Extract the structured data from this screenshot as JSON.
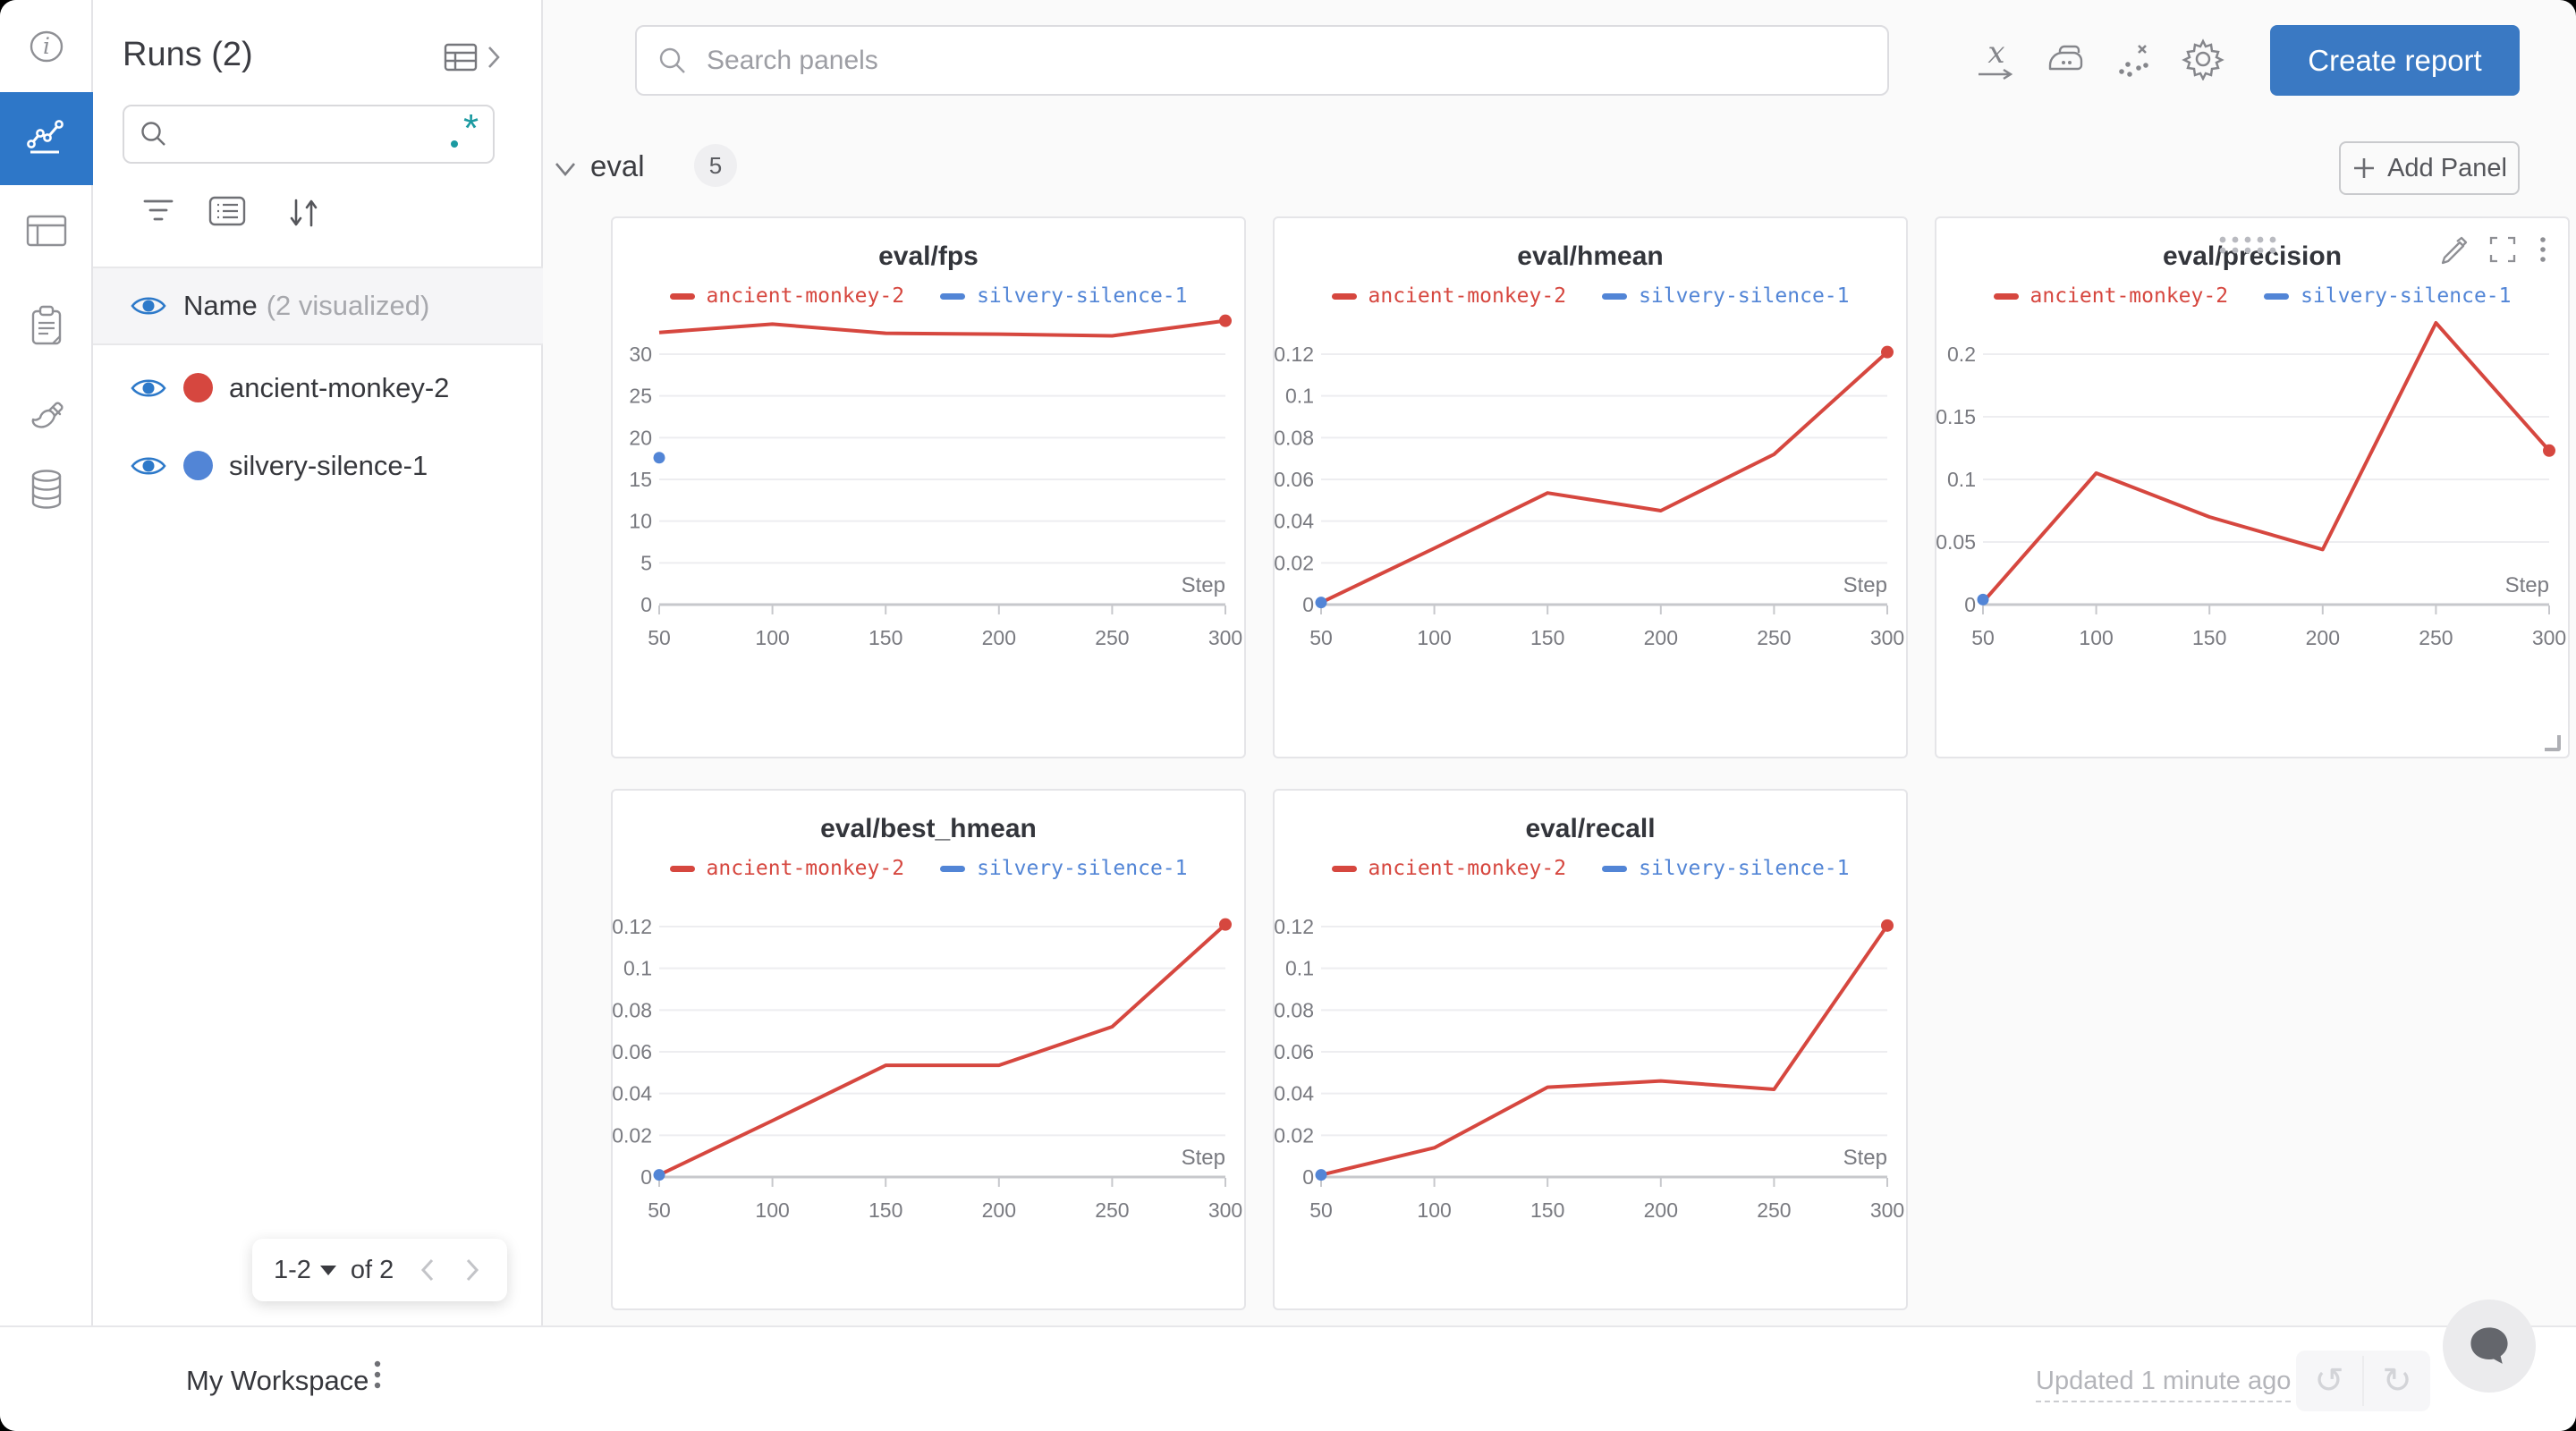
{
  "nav_rail": {
    "active_color": "#2e77c8",
    "items": [
      {
        "icon": "info-icon"
      },
      {
        "icon": "line-chart-icon",
        "active": true
      },
      {
        "icon": "table-icon"
      },
      {
        "icon": "clipboard-icon"
      },
      {
        "icon": "brush-icon"
      },
      {
        "icon": "database-icon"
      }
    ]
  },
  "sidebar": {
    "title": "Runs (2)",
    "search": {
      "value": "",
      "regex_icon": "regex-icon"
    },
    "columns_row": {
      "label": "Name",
      "note": "(2 visualized)"
    },
    "runs": [
      {
        "name": "ancient-monkey-2",
        "color": "#d6473f"
      },
      {
        "name": "silvery-silence-1",
        "color": "#5285d6"
      }
    ],
    "pagination": {
      "range": "1-2",
      "of_label": "of 2"
    }
  },
  "topbar": {
    "search_placeholder": "Search panels",
    "create_report_label": "Create report"
  },
  "section": {
    "name": "eval",
    "panel_count": "5",
    "add_panel_label": "Add Panel"
  },
  "footer": {
    "workspace_label": "My Workspace",
    "updated_label": "Updated 1 minute ago"
  },
  "chart_data": [
    {
      "type": "line",
      "title": "eval/fps",
      "xlabel": "Step",
      "x_ticks": [
        50,
        100,
        150,
        200,
        250,
        300
      ],
      "ylim": [
        0,
        30
      ],
      "y_ticks": [
        0,
        5,
        10,
        15,
        20,
        25,
        30
      ],
      "y_tick_labels": [
        "0",
        "5",
        "10",
        "15",
        "20",
        "25",
        "30"
      ],
      "grid": true,
      "legend_position": "top",
      "series": [
        {
          "name": "ancient-monkey-2",
          "color": "#d6473f",
          "x": [
            50,
            100,
            150,
            200,
            250,
            300
          ],
          "values": [
            32.6,
            33.6,
            32.5,
            32.4,
            32.2,
            34.0
          ]
        },
        {
          "name": "silvery-silence-1",
          "color": "#5285d6",
          "x": [
            50
          ],
          "values": [
            17.6
          ]
        }
      ]
    },
    {
      "type": "line",
      "title": "eval/hmean",
      "xlabel": "Step",
      "x_ticks": [
        50,
        100,
        150,
        200,
        250,
        300
      ],
      "ylim": [
        0,
        0.12
      ],
      "y_ticks": [
        0,
        0.02,
        0.04,
        0.06,
        0.08,
        0.1,
        0.12
      ],
      "y_tick_labels": [
        "0",
        "0.02",
        "0.04",
        "0.06",
        "0.08",
        "0.1",
        "0.12"
      ],
      "grid": true,
      "legend_position": "top",
      "series": [
        {
          "name": "ancient-monkey-2",
          "color": "#d6473f",
          "x": [
            50,
            100,
            150,
            200,
            250,
            300
          ],
          "values": [
            0.001,
            0.027,
            0.0535,
            0.045,
            0.072,
            0.121
          ]
        },
        {
          "name": "silvery-silence-1",
          "color": "#5285d6",
          "x": [
            50
          ],
          "values": [
            0.001
          ]
        }
      ]
    },
    {
      "type": "line",
      "title": "eval/precision",
      "xlabel": "Step",
      "x_ticks": [
        50,
        100,
        150,
        200,
        250,
        300
      ],
      "ylim": [
        0,
        0.2
      ],
      "y_ticks": [
        0,
        0.05,
        0.1,
        0.15,
        0.2
      ],
      "y_tick_labels": [
        "0",
        "0.05",
        "0.1",
        "0.15",
        "0.2"
      ],
      "grid": true,
      "legend_position": "top",
      "series": [
        {
          "name": "ancient-monkey-2",
          "color": "#d6473f",
          "x": [
            50,
            100,
            150,
            200,
            250,
            300
          ],
          "values": [
            0.002,
            0.105,
            0.07,
            0.044,
            0.225,
            0.123
          ]
        },
        {
          "name": "silvery-silence-1",
          "color": "#5285d6",
          "x": [
            50
          ],
          "values": [
            0.004
          ]
        }
      ]
    },
    {
      "type": "line",
      "title": "eval/best_hmean",
      "xlabel": "Step",
      "x_ticks": [
        50,
        100,
        150,
        200,
        250,
        300
      ],
      "ylim": [
        0,
        0.12
      ],
      "y_ticks": [
        0,
        0.02,
        0.04,
        0.06,
        0.08,
        0.1,
        0.12
      ],
      "y_tick_labels": [
        "0",
        "0.02",
        "0.04",
        "0.06",
        "0.08",
        "0.1",
        "0.12"
      ],
      "grid": true,
      "legend_position": "top",
      "series": [
        {
          "name": "ancient-monkey-2",
          "color": "#d6473f",
          "x": [
            50,
            100,
            150,
            200,
            250,
            300
          ],
          "values": [
            0.001,
            0.027,
            0.0535,
            0.0535,
            0.072,
            0.121
          ]
        },
        {
          "name": "silvery-silence-1",
          "color": "#5285d6",
          "x": [
            50
          ],
          "values": [
            0.001
          ]
        }
      ]
    },
    {
      "type": "line",
      "title": "eval/recall",
      "xlabel": "Step",
      "x_ticks": [
        50,
        100,
        150,
        200,
        250,
        300
      ],
      "ylim": [
        0,
        0.12
      ],
      "y_ticks": [
        0,
        0.02,
        0.04,
        0.06,
        0.08,
        0.1,
        0.12
      ],
      "y_tick_labels": [
        "0",
        "0.02",
        "0.04",
        "0.06",
        "0.08",
        "0.1",
        "0.12"
      ],
      "grid": true,
      "legend_position": "top",
      "series": [
        {
          "name": "ancient-monkey-2",
          "color": "#d6473f",
          "x": [
            50,
            100,
            150,
            200,
            250,
            300
          ],
          "values": [
            0.001,
            0.014,
            0.043,
            0.046,
            0.042,
            0.1205
          ]
        },
        {
          "name": "silvery-silence-1",
          "color": "#5285d6",
          "x": [
            50
          ],
          "values": [
            0.001
          ]
        }
      ]
    }
  ]
}
